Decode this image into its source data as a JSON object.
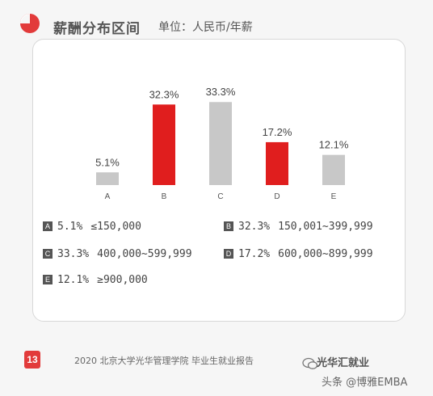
{
  "header": {
    "title": "薪酬分布区间",
    "unit": "单位：人民币/年薪"
  },
  "chart_data": {
    "type": "bar",
    "categories": [
      "A",
      "B",
      "C",
      "D",
      "E"
    ],
    "values": [
      5.1,
      32.3,
      33.3,
      17.2,
      12.1
    ],
    "value_labels": [
      "5.1%",
      "32.3%",
      "33.3%",
      "17.2%",
      "12.1%"
    ],
    "highlight": [
      false,
      true,
      false,
      true,
      false
    ],
    "ylim": [
      0,
      35
    ],
    "grid": false,
    "colors": {
      "default": "#c8c8c8",
      "highlight": "#e01e1e"
    }
  },
  "legend": [
    {
      "key": "A",
      "pct": "5.1%",
      "range": "≤150,000"
    },
    {
      "key": "B",
      "pct": "32.3%",
      "range": "150,001~399,999"
    },
    {
      "key": "C",
      "pct": "33.3%",
      "range": "400,000~599,999"
    },
    {
      "key": "D",
      "pct": "17.2%",
      "range": "600,000~899,999"
    },
    {
      "key": "E",
      "pct": "12.1%",
      "range": "≥900,000"
    }
  ],
  "footer": {
    "page": "13",
    "source": "2020 北京大学光华管理学院 毕业生就业报告",
    "brand": "光华汇就业",
    "watermark": "头条 @博雅EMBA"
  }
}
